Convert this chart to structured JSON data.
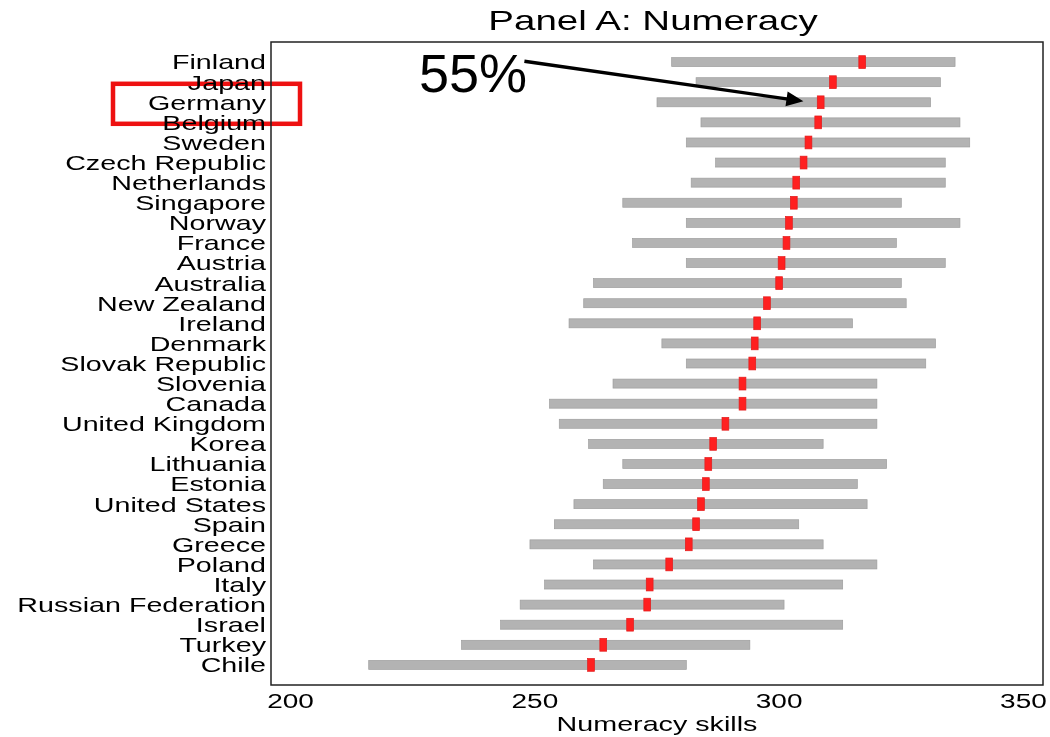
{
  "chart_data": {
    "type": "bar",
    "orientation": "horizontal",
    "title": "Panel A: Numeracy",
    "xlabel": "Numeracy skills",
    "categories": [
      "Finland",
      "Japan",
      "Germany",
      "Belgium",
      "Sweden",
      "Czech Republic",
      "Netherlands",
      "Singapore",
      "Norway",
      "France",
      "Austria",
      "Australia",
      "New Zealand",
      "Ireland",
      "Denmark",
      "Slovak Republic",
      "Slovenia",
      "Canada",
      "United Kingdom",
      "Korea",
      "Lithuania",
      "Estonia",
      "United States",
      "Spain",
      "Greece",
      "Poland",
      "Italy",
      "Russian Federation",
      "Israel",
      "Turkey",
      "Chile"
    ],
    "series": [
      {
        "color": "#b3b3b3",
        "base": [
          278,
          283,
          275,
          284,
          281,
          287,
          282,
          268,
          281,
          270,
          281,
          262,
          260,
          257,
          276,
          281,
          266,
          253,
          255,
          261,
          268,
          264,
          258,
          254,
          249,
          262,
          252,
          247,
          243,
          235,
          216
        ],
        "values": [
          58,
          50,
          56,
          53,
          58,
          47,
          52,
          57,
          56,
          54,
          53,
          63,
          66,
          58,
          56,
          49,
          54,
          67,
          65,
          48,
          54,
          52,
          60,
          50,
          60,
          58,
          61,
          54,
          70,
          59,
          65
        ]
      },
      {
        "type": "scatter",
        "color": "#ff2020",
        "x": [
          "Finland",
          "Japan",
          "Germany",
          "Belgium",
          "Sweden",
          "Czech Republic",
          "Netherlands",
          "Singapore",
          "Norway",
          "France",
          "Austria",
          "Australia",
          "New Zealand",
          "Ireland",
          "Denmark",
          "Slovak Republic",
          "Slovenia",
          "Canada",
          "United Kingdom",
          "Korea",
          "Lithuania",
          "Estonia",
          "United States",
          "Spain",
          "Greece",
          "Poland",
          "Italy",
          "Russian Federation",
          "Israel",
          "Turkey",
          "Chile"
        ],
        "values": [
          317,
          311,
          308.5,
          308,
          306,
          305,
          303.5,
          303,
          302,
          301.5,
          300.5,
          300,
          297.5,
          295.5,
          295,
          294.5,
          292.5,
          292.5,
          289,
          286.5,
          285.5,
          285,
          284,
          283,
          281.5,
          277.5,
          273.5,
          273,
          269.5,
          264,
          261.5
        ]
      }
    ],
    "xlim": [
      196,
      354
    ],
    "xticks": [
      200,
      250,
      300,
      350
    ],
    "marker": "square",
    "annotations": [
      "55%"
    ]
  }
}
